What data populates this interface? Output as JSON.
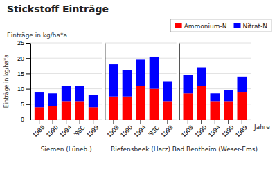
{
  "chart_data": [
    {
      "type": "bar",
      "stacked": true,
      "title": "Stickstoff Einträge",
      "ylabel": "Einträge in kg/ha*a",
      "xlabel": "Siemen (Lüneb.)",
      "categories": [
        "1986",
        "1990",
        "1994",
        "'96C",
        "1999"
      ],
      "series": [
        {
          "color": "#ff0000",
          "values": [
            4.0,
            4.5,
            6.0,
            6.0,
            4.0
          ]
        },
        {
          "color": "#0000ff",
          "values": [
            5.0,
            4.0,
            5.0,
            5.0,
            4.0
          ]
        }
      ],
      "ylim": [
        0,
        25
      ],
      "yticks": [
        0,
        5,
        10,
        15,
        20,
        25
      ],
      "grid": true,
      "tick_labels": true
    },
    {
      "type": "bar",
      "stacked": true,
      "xlabel": "Riefensbeek (Harz)",
      "categories": [
        "1903",
        "1990",
        "1994",
        "'93C",
        "1993"
      ],
      "series": [
        {
          "color": "#ff0000",
          "values": [
            7.5,
            7.5,
            11.0,
            10.0,
            6.0
          ]
        },
        {
          "color": "#0000ff",
          "values": [
            10.5,
            8.5,
            8.5,
            10.5,
            6.5
          ]
        }
      ],
      "ylim": [
        0,
        25
      ],
      "yticks": [
        0,
        5,
        10,
        15,
        20,
        25
      ],
      "grid": true,
      "tick_labels": "x"
    },
    {
      "type": "bar",
      "stacked": true,
      "xlabel": "Bad Bentheim (Weser-Ems)",
      "annotations": [
        {
          "text": "Jahre"
        }
      ],
      "categories": [
        "1903",
        "1990",
        "1394",
        "1390",
        "1989"
      ],
      "series": [
        {
          "name": "Ammonium-N",
          "color": "#ff0000",
          "values": [
            8.5,
            11.0,
            6.0,
            6.0,
            9.0
          ]
        },
        {
          "name": "Nitrat-N",
          "color": "#0000ff",
          "values": [
            6.0,
            6.0,
            2.5,
            3.5,
            5.0
          ]
        }
      ],
      "ylim": [
        0,
        25
      ],
      "yticks": [
        0,
        5,
        10,
        15,
        20,
        25
      ],
      "grid": true,
      "tick_labels": "x",
      "legend": "upper right"
    }
  ]
}
